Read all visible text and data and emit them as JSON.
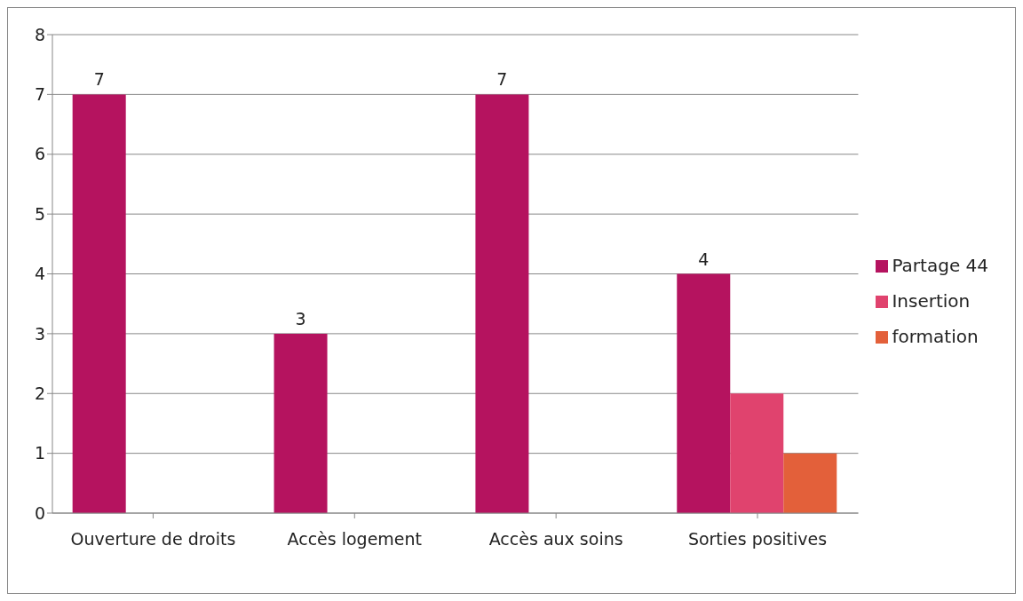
{
  "chart_data": {
    "type": "bar",
    "categories": [
      "Ouverture de droits",
      "Accès logement",
      "Accès aux soins",
      "Sorties positives"
    ],
    "series": [
      {
        "name": "Partage 44",
        "color": "#b5135f",
        "values": [
          7,
          3,
          7,
          4
        ],
        "value_labels": [
          "7",
          "3",
          "7",
          "4"
        ]
      },
      {
        "name": "Insertion",
        "color": "#e0436e",
        "values": [
          null,
          null,
          null,
          2
        ]
      },
      {
        "name": "formation",
        "color": "#e3603a",
        "values": [
          null,
          null,
          null,
          1
        ]
      }
    ],
    "ylim": [
      0,
      8
    ],
    "yticks": [
      0,
      1,
      2,
      3,
      4,
      5,
      6,
      7,
      8
    ],
    "grid": "y",
    "legend": "right"
  }
}
